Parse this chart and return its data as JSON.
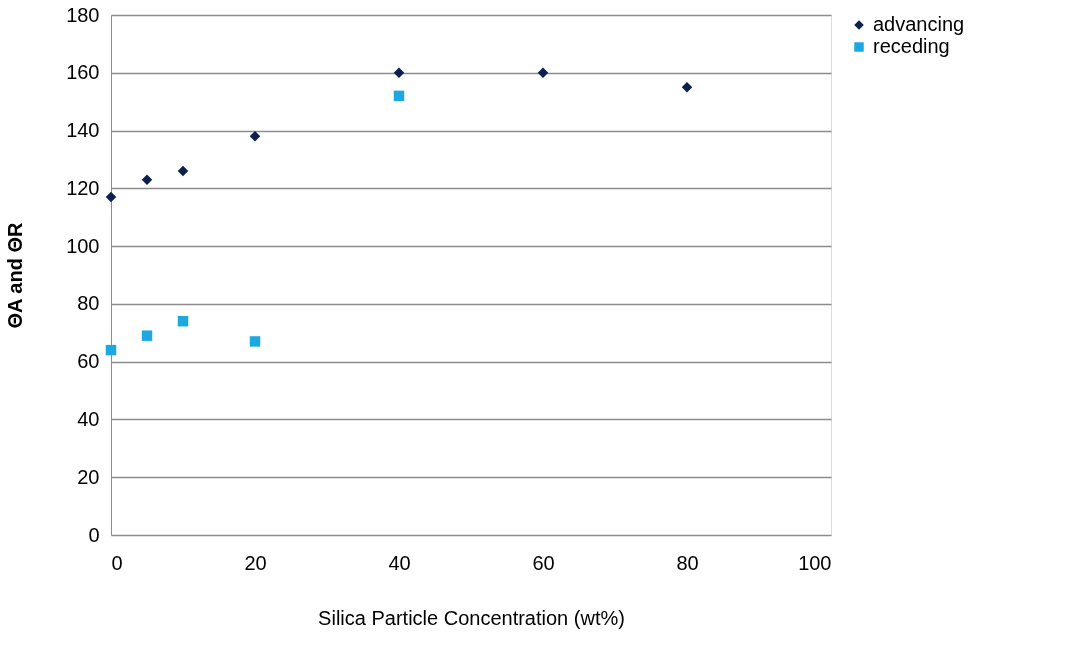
{
  "chart_data": {
    "type": "scatter",
    "xlabel": "Silica Particle Concentration (wt%)",
    "ylabel": "ΘA and ΘR",
    "xlim": [
      0,
      100
    ],
    "xticks": [
      0,
      20,
      40,
      60,
      80,
      100
    ],
    "ylim": [
      0,
      180
    ],
    "yticks": [
      0,
      20,
      40,
      60,
      80,
      100,
      120,
      140,
      160,
      180
    ],
    "grid": "y",
    "legend": "right",
    "series": [
      {
        "name": "advancing",
        "color": "#0d1f4f",
        "marker": "diamond",
        "x": [
          0,
          5,
          10,
          20,
          40,
          60,
          80
        ],
        "values": [
          117,
          123,
          126,
          138,
          160,
          160,
          155
        ]
      },
      {
        "name": "receding",
        "color": "#1ea8e0",
        "marker": "square",
        "x": [
          0,
          5,
          10,
          20,
          40
        ],
        "values": [
          64,
          69,
          74,
          67,
          152
        ]
      }
    ]
  }
}
